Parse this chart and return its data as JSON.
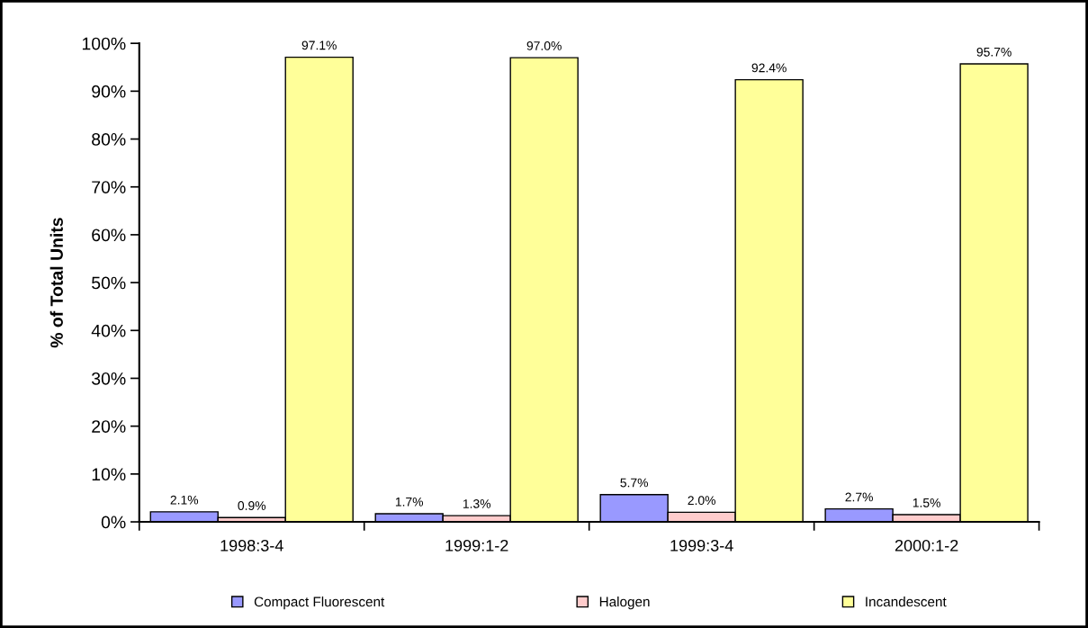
{
  "chart_data": {
    "type": "bar",
    "ylabel": "% of Total Units",
    "categories": [
      "1998:3-4",
      "1999:1-2",
      "1999:3-4",
      "2000:1-2"
    ],
    "series": [
      {
        "name": "Compact Fluorescent",
        "color": "#9999ff",
        "values": [
          2.1,
          1.7,
          5.7,
          2.7
        ],
        "value_labels": [
          "2.1%",
          "1.7%",
          "5.7%",
          "2.7%"
        ]
      },
      {
        "name": "Halogen",
        "color": "#ffcccc",
        "values": [
          0.9,
          1.3,
          2.0,
          1.5
        ],
        "value_labels": [
          "0.9%",
          "1.3%",
          "2.0%",
          "1.5%"
        ]
      },
      {
        "name": "Incandescent",
        "color": "#ffff99",
        "values": [
          97.1,
          97.0,
          92.4,
          95.7
        ],
        "value_labels": [
          "97.1%",
          "97.0%",
          "92.4%",
          "95.7%"
        ]
      }
    ],
    "ylim": [
      0,
      100
    ],
    "yticks": [
      {
        "value": 0,
        "label": "0%"
      },
      {
        "value": 10,
        "label": "10%"
      },
      {
        "value": 20,
        "label": "20%"
      },
      {
        "value": 30,
        "label": "30%"
      },
      {
        "value": 40,
        "label": "40%"
      },
      {
        "value": 50,
        "label": "50%"
      },
      {
        "value": 60,
        "label": "60%"
      },
      {
        "value": 70,
        "label": "70%"
      },
      {
        "value": 80,
        "label": "80%"
      },
      {
        "value": 90,
        "label": "90%"
      },
      {
        "value": 100,
        "label": "100%"
      }
    ],
    "grid": false,
    "legend": "bottom"
  }
}
